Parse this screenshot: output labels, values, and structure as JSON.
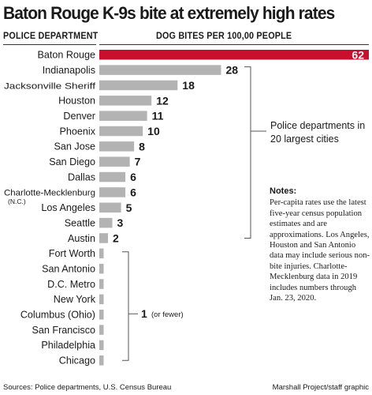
{
  "title": "Baton Rouge K-9s bite at extremely high rates",
  "column_headers": {
    "left": "POLICE DEPARTMENT",
    "right": "DOG BITES PER 100,00 PEOPLE"
  },
  "colors": {
    "highlight": "#c8102e",
    "bar": "#b3b3b3",
    "text": "#1a1a1a"
  },
  "bracket_label_top": "Police departments in 20 largest cities",
  "bracket_label_bottom": {
    "value": "1",
    "note": "(or fewer)"
  },
  "notes": {
    "title": "Notes:",
    "body": "Per-capita rates use the latest five-year census population estimates and are approximations. Los Angeles, Houston and San Antonio data may include serious non-bite injuries. Charlotte-Mecklenburg data in 2019 includes numbers through Jan. 23, 2020."
  },
  "footer": {
    "source": "Sources: Police departments, U.S. Census Bureau",
    "credit": "Marshall Project/staff graphic"
  },
  "chart_data": {
    "type": "bar",
    "orientation": "horizontal",
    "title": "Baton Rouge K-9s bite at extremely high rates",
    "xlabel": "DOG BITES PER 100,00 PEOPLE",
    "ylabel": "POLICE DEPARTMENT",
    "categories": [
      "Baton Rouge",
      "Indianapolis",
      "Jacksonville Sheriff",
      "Houston",
      "Denver",
      "Phoenix",
      "San Jose",
      "San Diego",
      "Dallas",
      "Charlotte-Mecklenburg",
      "Los Angeles",
      "Seattle",
      "Austin",
      "Fort Worth",
      "San Antonio",
      "D.C. Metro",
      "New York",
      "Columbus (Ohio)",
      "San Francisco",
      "Philadelphia",
      "Chicago"
    ],
    "category_sublabels": {
      "Charlotte-Mecklenburg": "(N.C.)"
    },
    "values": [
      62,
      28,
      18,
      12,
      11,
      10,
      8,
      7,
      6,
      6,
      5,
      3,
      2,
      1,
      1,
      1,
      1,
      1,
      1,
      1,
      1
    ],
    "value_labels": [
      "62",
      "28",
      "18",
      "12",
      "11",
      "10",
      "8",
      "7",
      "6",
      "6",
      "5",
      "3",
      "2",
      "",
      "",
      "",
      "",
      "",
      "",
      "",
      ""
    ],
    "highlight_category": "Baton Rouge",
    "xlim": [
      0,
      62
    ],
    "grid": false,
    "legend": "none"
  }
}
